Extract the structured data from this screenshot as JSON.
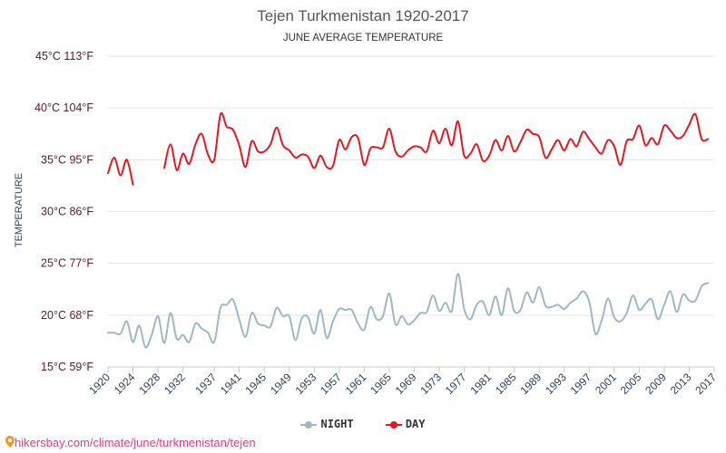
{
  "title": "Tejen Turkmenistan 1920-2017",
  "subtitle": "JUNE AVERAGE TEMPERATURE",
  "source": "hikersbay.com/climate/june/turkmenistan/tejen",
  "chart_data": {
    "type": "line",
    "title": "Tejen Turkmenistan 1920-2017",
    "subtitle": "JUNE AVERAGE TEMPERATURE",
    "ylabel": "TEMPERATURE",
    "xlabel": "",
    "ylim": [
      15,
      45
    ],
    "xlim": [
      1920,
      2017
    ],
    "y_ticks": [
      {
        "value": 15,
        "label": "15°C 59°F"
      },
      {
        "value": 20,
        "label": "20°C 68°F"
      },
      {
        "value": 25,
        "label": "25°C 77°F"
      },
      {
        "value": 30,
        "label": "30°C 86°F"
      },
      {
        "value": 35,
        "label": "35°C 95°F"
      },
      {
        "value": 40,
        "label": "40°C 104°F"
      },
      {
        "value": 45,
        "label": "45°C 113°F"
      }
    ],
    "x_ticks": [
      1920,
      1924,
      1928,
      1932,
      1937,
      1941,
      1945,
      1949,
      1953,
      1957,
      1961,
      1965,
      1969,
      1973,
      1977,
      1981,
      1985,
      1989,
      1993,
      1997,
      2001,
      2005,
      2009,
      2013,
      2017
    ],
    "grid": true,
    "legend_position": "bottom",
    "series": [
      {
        "name": "NIGHT",
        "color": "#9fb8c2",
        "values": [
          [
            1920,
            18.3
          ],
          [
            1921,
            18.3
          ],
          [
            1922,
            18.2
          ],
          [
            1923,
            19.4
          ],
          [
            1924,
            17.4
          ],
          [
            1925,
            19.0
          ],
          [
            1926,
            16.9
          ],
          [
            1927,
            18.1
          ],
          [
            1928,
            19.9
          ],
          [
            1929,
            17.3
          ],
          [
            1930,
            20.2
          ],
          [
            1931,
            17.7
          ],
          [
            1932,
            18.1
          ],
          [
            1933,
            17.4
          ],
          [
            1934,
            19.2
          ],
          [
            1935,
            18.7
          ],
          [
            1936,
            18.3
          ],
          [
            1937,
            17.4
          ],
          [
            1938,
            20.7
          ],
          [
            1939,
            21.0
          ],
          [
            1940,
            21.5
          ],
          [
            1941,
            19.6
          ],
          [
            1942,
            17.9
          ],
          [
            1943,
            20.2
          ],
          [
            1944,
            19.2
          ],
          [
            1945,
            19.0
          ],
          [
            1946,
            18.9
          ],
          [
            1947,
            20.7
          ],
          [
            1948,
            19.9
          ],
          [
            1949,
            19.9
          ],
          [
            1950,
            17.6
          ],
          [
            1951,
            19.7
          ],
          [
            1952,
            19.8
          ],
          [
            1953,
            18.2
          ],
          [
            1954,
            20.5
          ],
          [
            1955,
            17.8
          ],
          [
            1956,
            19.4
          ],
          [
            1957,
            20.6
          ],
          [
            1958,
            20.5
          ],
          [
            1959,
            20.5
          ],
          [
            1960,
            19.2
          ],
          [
            1961,
            18.6
          ],
          [
            1962,
            20.8
          ],
          [
            1963,
            19.6
          ],
          [
            1964,
            19.9
          ],
          [
            1965,
            22.1
          ],
          [
            1966,
            19.1
          ],
          [
            1967,
            19.9
          ],
          [
            1968,
            19.1
          ],
          [
            1969,
            19.5
          ],
          [
            1970,
            20.2
          ],
          [
            1971,
            20.3
          ],
          [
            1972,
            21.9
          ],
          [
            1973,
            20.4
          ],
          [
            1974,
            21.2
          ],
          [
            1975,
            20.4
          ],
          [
            1976,
            24.0
          ],
          [
            1977,
            20.6
          ],
          [
            1978,
            19.6
          ],
          [
            1979,
            21.0
          ],
          [
            1980,
            21.3
          ],
          [
            1981,
            20.0
          ],
          [
            1982,
            21.8
          ],
          [
            1983,
            20.0
          ],
          [
            1984,
            22.6
          ],
          [
            1985,
            20.4
          ],
          [
            1986,
            20.5
          ],
          [
            1987,
            22.2
          ],
          [
            1988,
            21.2
          ],
          [
            1989,
            22.7
          ],
          [
            1990,
            20.9
          ],
          [
            1991,
            20.8
          ],
          [
            1992,
            21.0
          ],
          [
            1993,
            20.6
          ],
          [
            1994,
            21.2
          ],
          [
            1995,
            21.6
          ],
          [
            1996,
            22.3
          ],
          [
            1997,
            21.3
          ],
          [
            1998,
            18.2
          ],
          [
            1999,
            19.5
          ],
          [
            2000,
            21.6
          ],
          [
            2001,
            19.8
          ],
          [
            2002,
            19.4
          ],
          [
            2003,
            20.2
          ],
          [
            2004,
            21.9
          ],
          [
            2005,
            20.5
          ],
          [
            2006,
            21.1
          ],
          [
            2007,
            21.5
          ],
          [
            2008,
            19.6
          ],
          [
            2009,
            21.0
          ],
          [
            2010,
            22.3
          ],
          [
            2011,
            20.3
          ],
          [
            2012,
            22.0
          ],
          [
            2013,
            21.4
          ],
          [
            2014,
            21.4
          ],
          [
            2015,
            22.8
          ],
          [
            2016,
            23.1
          ]
        ]
      },
      {
        "name": "DAY",
        "color": "#e8161f",
        "values": [
          [
            1920,
            33.7
          ],
          [
            1921,
            35.2
          ],
          [
            1922,
            33.5
          ],
          [
            1923,
            35.0
          ],
          [
            1924,
            32.6
          ],
          [
            1929,
            34.2
          ],
          [
            1930,
            36.5
          ],
          [
            1931,
            34.0
          ],
          [
            1932,
            35.6
          ],
          [
            1933,
            34.6
          ],
          [
            1934,
            36.5
          ],
          [
            1935,
            37.5
          ],
          [
            1936,
            35.5
          ],
          [
            1937,
            35.0
          ],
          [
            1938,
            39.4
          ],
          [
            1939,
            38.2
          ],
          [
            1940,
            37.9
          ],
          [
            1941,
            36.4
          ],
          [
            1942,
            34.3
          ],
          [
            1943,
            36.8
          ],
          [
            1944,
            35.8
          ],
          [
            1945,
            35.8
          ],
          [
            1946,
            36.5
          ],
          [
            1947,
            38.1
          ],
          [
            1948,
            36.4
          ],
          [
            1949,
            35.9
          ],
          [
            1950,
            35.2
          ],
          [
            1951,
            35.5
          ],
          [
            1952,
            35.3
          ],
          [
            1953,
            34.2
          ],
          [
            1954,
            35.4
          ],
          [
            1955,
            34.3
          ],
          [
            1956,
            34.4
          ],
          [
            1957,
            36.9
          ],
          [
            1958,
            36.0
          ],
          [
            1959,
            37.2
          ],
          [
            1960,
            37.1
          ],
          [
            1961,
            34.5
          ],
          [
            1962,
            36.1
          ],
          [
            1963,
            36.2
          ],
          [
            1964,
            36.2
          ],
          [
            1965,
            38.0
          ],
          [
            1966,
            35.8
          ],
          [
            1967,
            35.3
          ],
          [
            1968,
            35.9
          ],
          [
            1969,
            36.3
          ],
          [
            1970,
            36.2
          ],
          [
            1971,
            35.8
          ],
          [
            1972,
            37.8
          ],
          [
            1973,
            36.6
          ],
          [
            1974,
            38.0
          ],
          [
            1975,
            36.4
          ],
          [
            1976,
            38.7
          ],
          [
            1977,
            35.4
          ],
          [
            1978,
            35.6
          ],
          [
            1979,
            36.5
          ],
          [
            1980,
            34.9
          ],
          [
            1981,
            35.4
          ],
          [
            1982,
            36.9
          ],
          [
            1983,
            35.9
          ],
          [
            1984,
            37.3
          ],
          [
            1985,
            35.8
          ],
          [
            1986,
            36.7
          ],
          [
            1987,
            37.9
          ],
          [
            1988,
            37.5
          ],
          [
            1989,
            37.2
          ],
          [
            1990,
            35.2
          ],
          [
            1991,
            36.0
          ],
          [
            1992,
            36.9
          ],
          [
            1993,
            35.9
          ],
          [
            1994,
            37.0
          ],
          [
            1995,
            36.3
          ],
          [
            1996,
            37.7
          ],
          [
            1997,
            37.0
          ],
          [
            1998,
            36.2
          ],
          [
            1999,
            35.6
          ],
          [
            2000,
            36.9
          ],
          [
            2001,
            36.3
          ],
          [
            2002,
            34.5
          ],
          [
            2003,
            36.8
          ],
          [
            2004,
            37.0
          ],
          [
            2005,
            38.3
          ],
          [
            2006,
            36.4
          ],
          [
            2007,
            37.1
          ],
          [
            2008,
            36.5
          ],
          [
            2009,
            38.3
          ],
          [
            2010,
            37.8
          ],
          [
            2011,
            37.1
          ],
          [
            2012,
            37.3
          ],
          [
            2013,
            38.4
          ],
          [
            2014,
            39.4
          ],
          [
            2015,
            37.0
          ],
          [
            2016,
            37.0
          ]
        ]
      }
    ]
  }
}
